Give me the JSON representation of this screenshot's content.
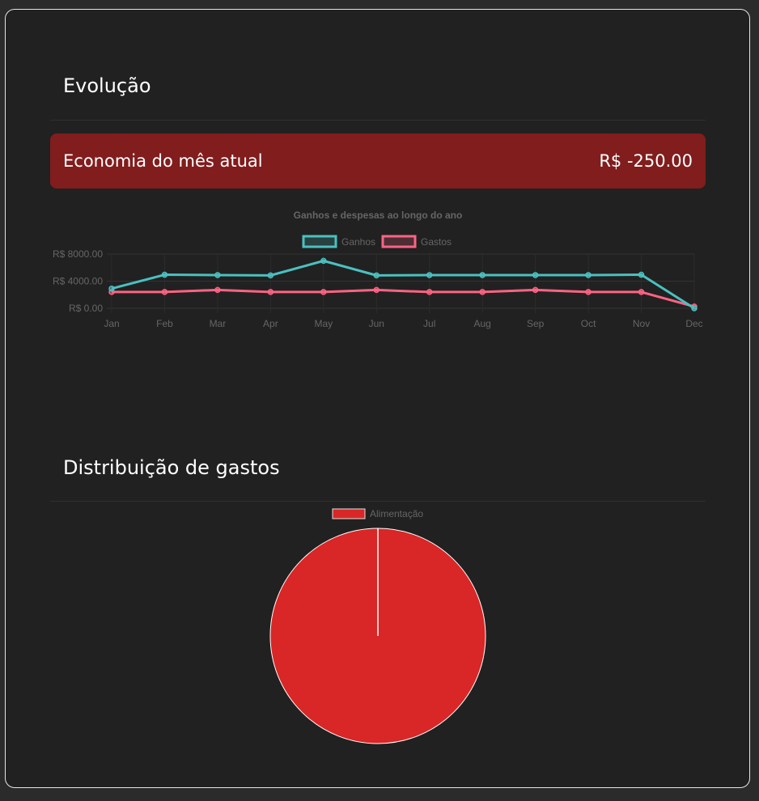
{
  "sections": {
    "evolution_title": "Evolução",
    "distribution_title": "Distribuição de gastos"
  },
  "savings": {
    "label": "Economia do mês atual",
    "value": "R$ -250.00"
  },
  "colors": {
    "ganhos": "#4bc0c0",
    "gastos": "#ff6384",
    "alimentacao": "#d92626",
    "savings_bg": "#811d1d"
  },
  "chart_data": [
    {
      "type": "line",
      "title": "Ganhos e despesas ao longo do ano",
      "categories": [
        "Jan",
        "Feb",
        "Mar",
        "Apr",
        "May",
        "Jun",
        "Jul",
        "Aug",
        "Sep",
        "Oct",
        "Nov",
        "Dec"
      ],
      "y_ticks": [
        "R$ 8000.00",
        "R$ 4000.00",
        "R$ 0.00"
      ],
      "ylim": [
        0,
        8000
      ],
      "legend_position": "top",
      "series": [
        {
          "name": "Ganhos",
          "values": [
            2900,
            4950,
            4900,
            4850,
            7000,
            4850,
            4900,
            4900,
            4900,
            4900,
            4950,
            0
          ]
        },
        {
          "name": "Gastos",
          "values": [
            2400,
            2400,
            2700,
            2400,
            2400,
            2700,
            2400,
            2400,
            2700,
            2400,
            2400,
            250
          ]
        }
      ]
    },
    {
      "type": "pie",
      "labels": [
        "Alimentação"
      ],
      "values": [
        100
      ],
      "legend_position": "top"
    }
  ]
}
